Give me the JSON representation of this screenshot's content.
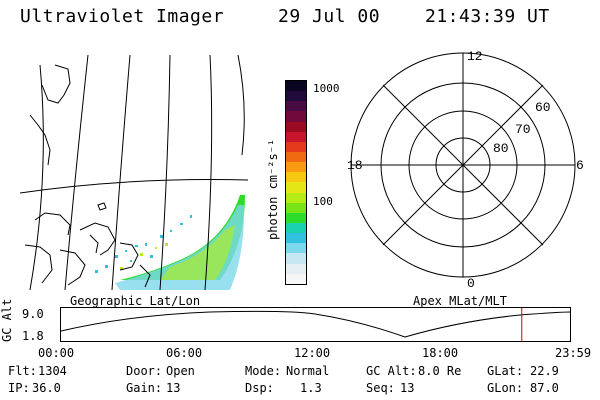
{
  "header": {
    "instrument": "Ultraviolet Imager",
    "date": "29 Jul 00",
    "time": "21:43:39 UT"
  },
  "colorbar": {
    "ticks": [
      "1000",
      "100"
    ],
    "unit": "photon cm⁻²s⁻¹",
    "colors": [
      "#0a0520",
      "#200a3c",
      "#4a0a44",
      "#700a3a",
      "#9a0a20",
      "#c8142c",
      "#e23a1a",
      "#f06a12",
      "#fa9a10",
      "#f6c812",
      "#e4e616",
      "#b6ec16",
      "#76e416",
      "#2edc2c",
      "#1ad2b0",
      "#30c0e0",
      "#7ed8ec",
      "#c6e8f2",
      "#e6f0f4",
      "#f6f6f6"
    ]
  },
  "polar": {
    "mlt_labels": {
      "top": "12",
      "left": "18",
      "right": "6",
      "bottom": "0"
    },
    "lat_labels": [
      "60",
      "70",
      "80"
    ]
  },
  "captions": {
    "left": "Geographic Lat/Lon",
    "right": "Apex MLat/MLT"
  },
  "orbit": {
    "axis_title": "GC Alt",
    "y_max": "9.0",
    "y_min": "1.8",
    "time_ticks": [
      "00:00",
      "06:00",
      "12:00",
      "18:00",
      "23:59"
    ],
    "marker_time_hours": 21.73
  },
  "status": {
    "row1": [
      {
        "label": "Flt:",
        "value": "1304"
      },
      {
        "label": "Door:",
        "value": "Open"
      },
      {
        "label": "Mode:",
        "value": "Normal"
      },
      {
        "label": "GC Alt:",
        "value": "8.0 Re"
      },
      {
        "label": "GLat:",
        "value": "22.9"
      }
    ],
    "row2": [
      {
        "label": "IP:",
        "value": "36.0"
      },
      {
        "label": "Gain:",
        "value": "13"
      },
      {
        "label": "Dsp:",
        "value": "1.3"
      },
      {
        "label": "Seq:",
        "value": "13"
      },
      {
        "label": "GLon:",
        "value": "87.0"
      }
    ]
  },
  "accent_colors": {
    "marker": "#d00000",
    "aurora_green": "#2edc2c",
    "aurora_cyan": "#30c0e0"
  }
}
